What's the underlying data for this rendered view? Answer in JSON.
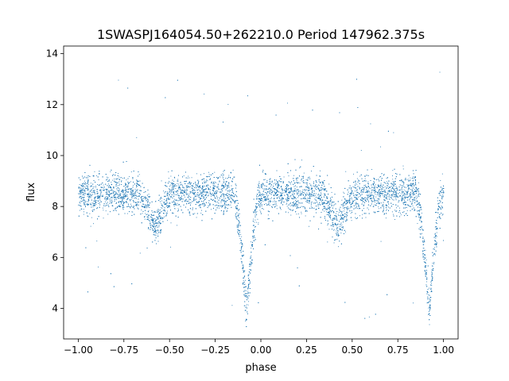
{
  "chart_data": {
    "type": "scatter",
    "title": "1SWASPJ164054.50+262210.0 Period 147962.375s",
    "xlabel": "phase",
    "ylabel": "flux",
    "xlim": [
      -1.08,
      1.08
    ],
    "ylim": [
      2.8,
      14.3
    ],
    "x_ticks": [
      -1.0,
      -0.75,
      -0.5,
      -0.25,
      0.0,
      0.25,
      0.5,
      0.75,
      1.0
    ],
    "x_tick_labels": [
      "−1.00",
      "−0.75",
      "−0.50",
      "−0.25",
      "0.00",
      "0.25",
      "0.50",
      "0.75",
      "1.00"
    ],
    "y_ticks": [
      4,
      6,
      8,
      10,
      12,
      14
    ],
    "y_tick_labels": [
      "4",
      "6",
      "8",
      "10",
      "12",
      "14"
    ],
    "grid": false,
    "point_color": "#1f77b4",
    "series": [
      {
        "baseline_flux": 8.5,
        "primary_eclipse": {
          "phases": [
            -0.08,
            0.92
          ],
          "min_flux": 3.8
        },
        "secondary_eclipse": {
          "phases": [
            -0.58,
            0.42
          ],
          "min_flux": 7.2
        },
        "phase_range": [
          -1.0,
          1.0
        ],
        "points_shown": "dense scatter with outliers from about 3.4 to 13.8"
      }
    ]
  }
}
